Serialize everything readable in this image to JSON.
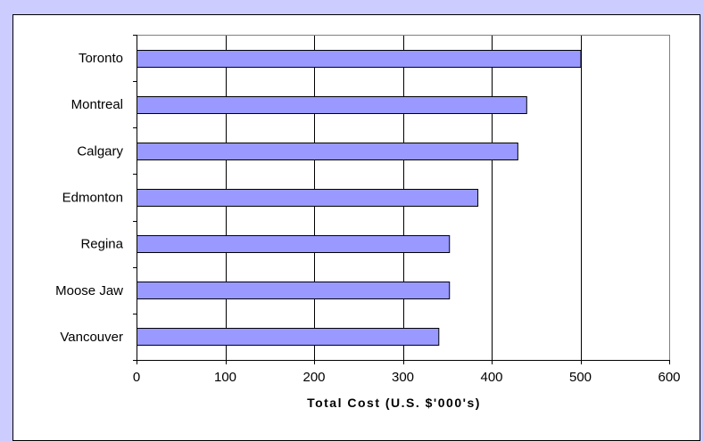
{
  "chart_data": {
    "type": "bar",
    "orientation": "horizontal",
    "title": "",
    "xlabel": "Total Cost (U.S. $'000's)",
    "ylabel": "",
    "xlim": [
      0,
      600
    ],
    "xticks": [
      0,
      100,
      200,
      300,
      400,
      500,
      600
    ],
    "categories": [
      "Toronto",
      "Montreal",
      "Calgary",
      "Edmonton",
      "Regina",
      "Moose Jaw",
      "Vancouver"
    ],
    "values": [
      500,
      439,
      429,
      384,
      352,
      352,
      340
    ],
    "grid": "vertical",
    "legend": "none",
    "bar_color": "#9999ff",
    "background": "#ccccff"
  }
}
